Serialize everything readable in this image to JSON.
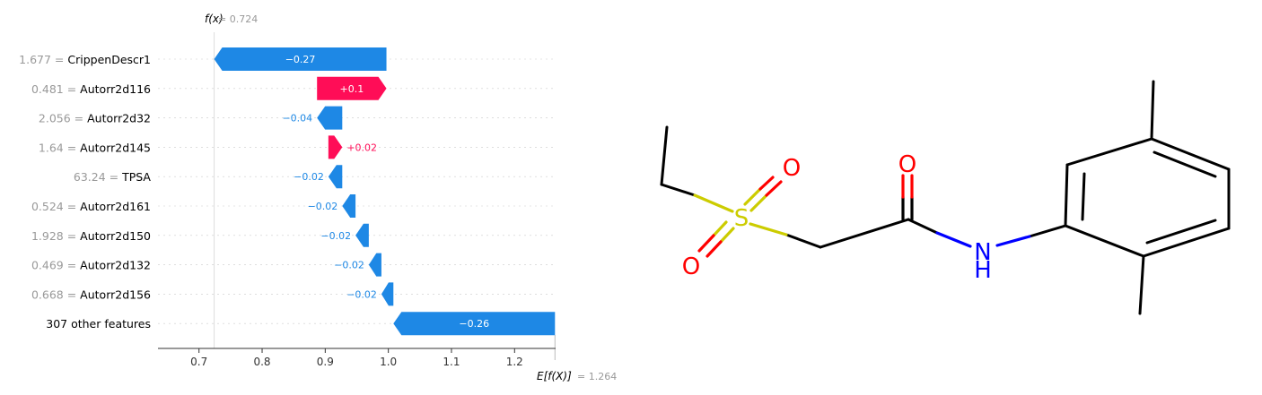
{
  "chart_data": {
    "type": "waterfall",
    "fx_label": "f(x)",
    "fx_eq": " = 0.724",
    "ex_label": "E[f(X)]",
    "ex_eq": " = 1.264",
    "base_value": 1.264,
    "final_value": 0.724,
    "xlim": [
      0.635,
      1.265
    ],
    "xticks": [
      0.7,
      0.8,
      0.9,
      1.0,
      1.1,
      1.2
    ],
    "xtick_labels": [
      "0.7",
      "0.8",
      "0.9",
      "1.0",
      "1.1",
      "1.2"
    ],
    "features": [
      {
        "value": "1.677 = ",
        "name": "CrippenDescr1",
        "label": "−0.27",
        "start": 0.997,
        "end": 0.724
      },
      {
        "value": "0.481 = ",
        "name": "Autorr2d116",
        "label": "+0.1",
        "start": 0.887,
        "end": 0.997
      },
      {
        "value": "2.056 = ",
        "name": "Autorr2d32",
        "label": "−0.04",
        "start": 0.927,
        "end": 0.887
      },
      {
        "value": "1.64 = ",
        "name": "Autorr2d145",
        "label": "+0.02",
        "start": 0.905,
        "end": 0.927
      },
      {
        "value": "63.24 = ",
        "name": "TPSA",
        "label": "−0.02",
        "start": 0.927,
        "end": 0.905
      },
      {
        "value": "0.524 = ",
        "name": "Autorr2d161",
        "label": "−0.02",
        "start": 0.948,
        "end": 0.927
      },
      {
        "value": "1.928 = ",
        "name": "Autorr2d150",
        "label": "−0.02",
        "start": 0.969,
        "end": 0.948
      },
      {
        "value": "0.469 = ",
        "name": "Autorr2d132",
        "label": "−0.02",
        "start": 0.989,
        "end": 0.969
      },
      {
        "value": "0.668 = ",
        "name": "Autorr2d156",
        "label": "−0.02",
        "start": 1.008,
        "end": 0.989
      },
      {
        "value": "",
        "name": "307 other features",
        "label": "−0.26",
        "start": 1.264,
        "end": 1.008
      }
    ],
    "colors": {
      "positive": "#ff0d57",
      "negative": "#1e88e5"
    }
  },
  "molecule": {
    "atoms": {
      "o1": "O",
      "o2": "O",
      "s": "S",
      "o3": "O",
      "n": "N",
      "h": "H"
    },
    "colors": {
      "oxygen": "#ff0000",
      "sulfur": "#cccc00",
      "nitrogen": "#0000ff",
      "bond": "#000000"
    }
  }
}
